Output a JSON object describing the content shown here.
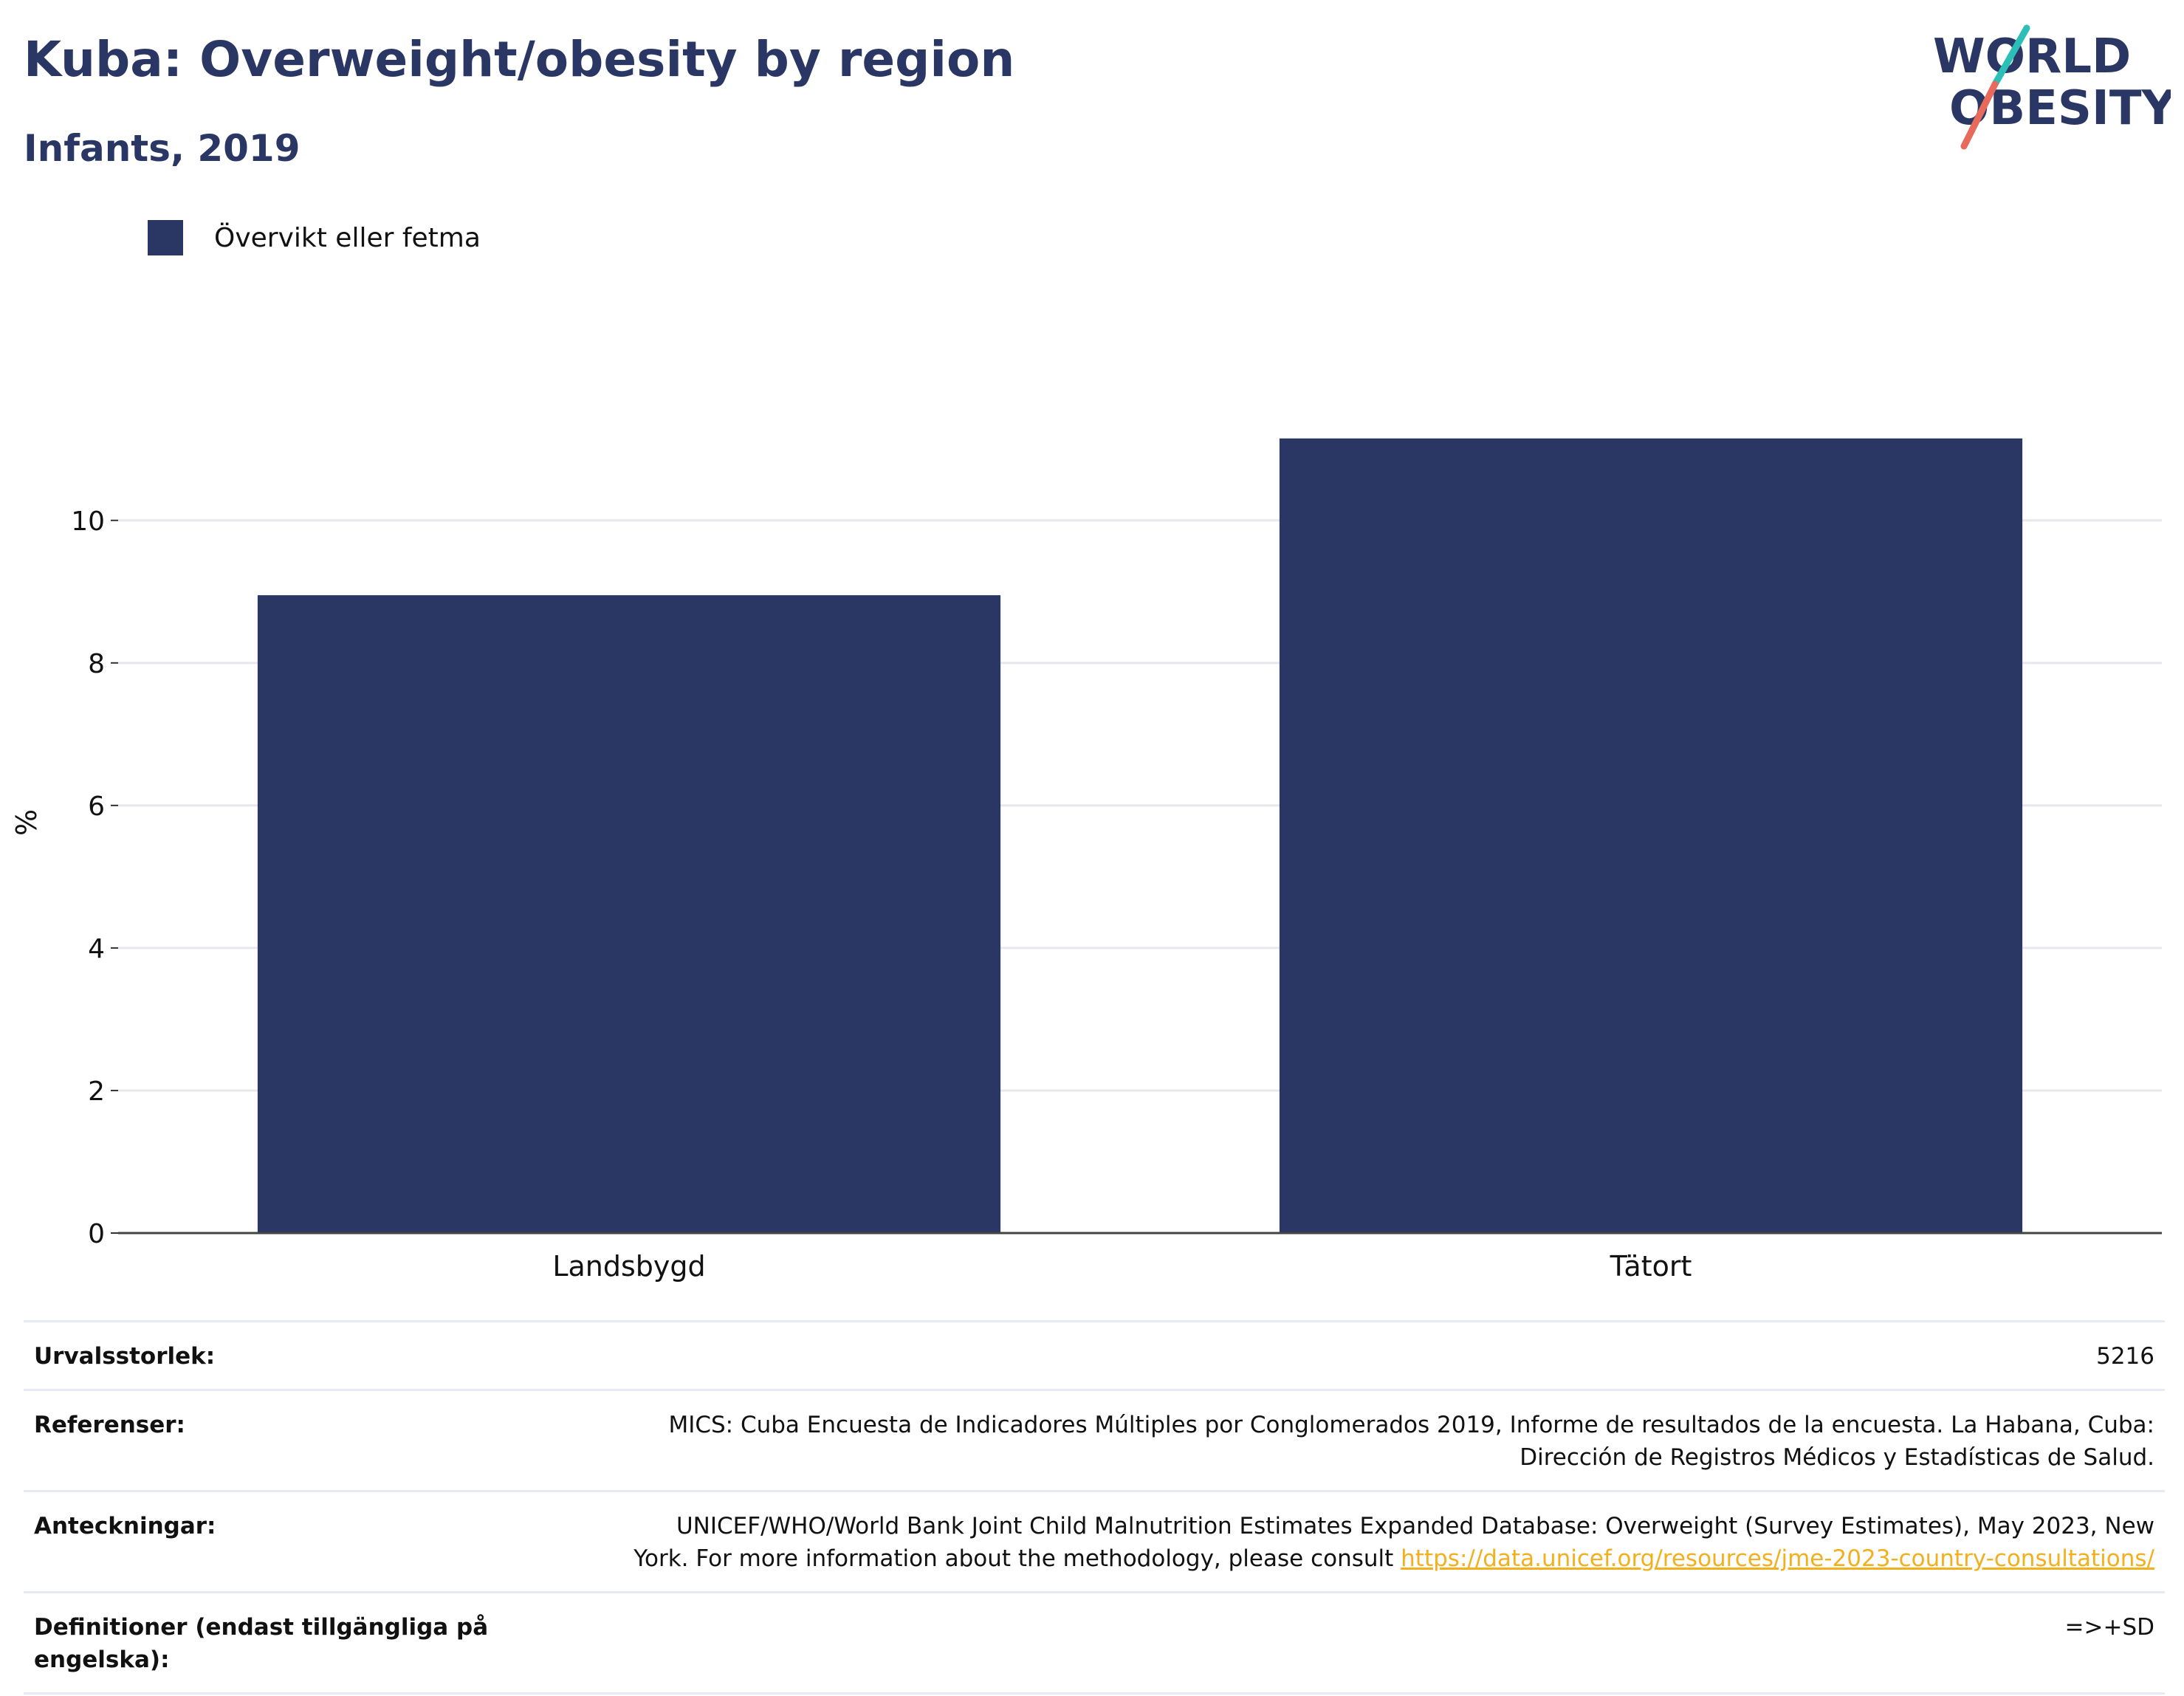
{
  "header": {
    "title": "Kuba: Overweight/obesity by region",
    "subtitle": "Infants, 2019"
  },
  "logo": {
    "line1": "WORLD",
    "line2": "OBESITY",
    "colors": {
      "text": "#2a3764",
      "slash_top": "#2bbfb8",
      "slash_bottom": "#e86a5a"
    }
  },
  "chart_data": {
    "type": "bar",
    "categories": [
      "Landsbygd",
      "Tätort"
    ],
    "series": [
      {
        "name": "Övervikt eller fetma",
        "values": [
          8.95,
          11.15
        ],
        "color": "#2a3764"
      }
    ],
    "xlabel": "",
    "ylabel": "%",
    "ylim": [
      0,
      11.5
    ],
    "yticks": [
      0,
      2,
      4,
      6,
      8,
      10
    ],
    "grid": true,
    "legend_position": "top-left"
  },
  "meta": {
    "sample_size": {
      "label": "Urvalsstorlek:",
      "value": "5216"
    },
    "references": {
      "label": "Referenser:",
      "value_line1": "MICS: Cuba Encuesta de Indicadores Múltiples por Conglomerados 2019, Informe de resultados de la encuesta. La Habana, Cuba:",
      "value_line2": "Dirección de Registros Médicos y Estadísticas de Salud."
    },
    "notes": {
      "label": "Anteckningar:",
      "value_line1": "UNICEF/WHO/World Bank Joint Child Malnutrition Estimates Expanded Database: Overweight (Survey Estimates), May 2023, New",
      "value_line2": "York. For more information about the methodology, please consult ",
      "link": "https://data.unicef.org/resources/jme-2023-country-consultations/"
    },
    "definitions": {
      "label_line1": "Definitioner (endast tillgängliga på",
      "label_line2": "engelska):",
      "value": "=>+SD"
    }
  }
}
